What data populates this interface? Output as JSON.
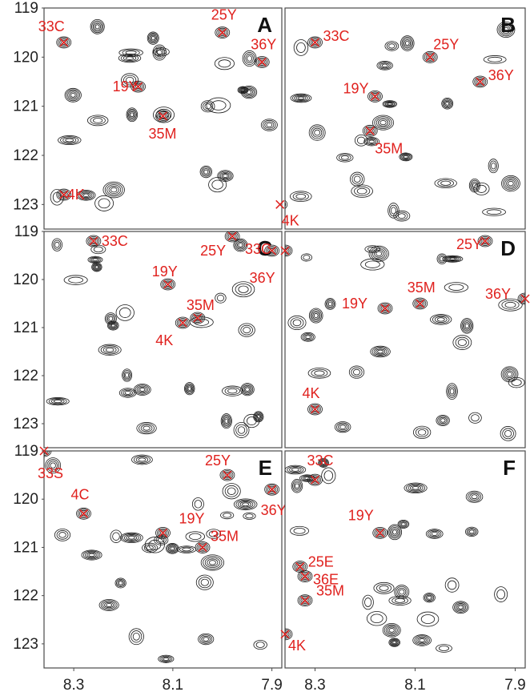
{
  "chart_data": {
    "type": "scatter",
    "description_free": true,
    "x_ticks": [
      "8.3",
      "8.1",
      "7.9"
    ],
    "y_ticks": [
      "119",
      "120",
      "121",
      "122",
      "123"
    ],
    "xlim": [
      8.36,
      7.88
    ],
    "ylim": [
      119.0,
      123.5
    ],
    "accent": "#e0211e",
    "panels": [
      {
        "label": "A",
        "assignments": [
          {
            "name": "33C",
            "x": 8.32,
            "y": 119.7
          },
          {
            "name": "25Y",
            "x": 8.0,
            "y": 119.5
          },
          {
            "name": "36Y",
            "x": 7.92,
            "y": 120.1
          },
          {
            "name": "19Y",
            "x": 8.17,
            "y": 120.6
          },
          {
            "name": "35M",
            "x": 8.12,
            "y": 121.2
          },
          {
            "name": "4K",
            "x": 8.32,
            "y": 122.8
          }
        ]
      },
      {
        "label": "B",
        "assignments": [
          {
            "name": "33C",
            "x": 8.3,
            "y": 119.7
          },
          {
            "name": "25Y",
            "x": 8.07,
            "y": 120.0
          },
          {
            "name": "36Y",
            "x": 7.97,
            "y": 120.5
          },
          {
            "name": "19Y",
            "x": 8.18,
            "y": 120.8
          },
          {
            "name": "35M",
            "x": 8.19,
            "y": 121.5
          },
          {
            "name": "4K",
            "x": 8.37,
            "y": 123.0
          }
        ]
      },
      {
        "label": "C",
        "assignments": [
          {
            "name": "33C",
            "x": 8.26,
            "y": 119.2
          },
          {
            "name": "25Y",
            "x": 7.98,
            "y": 119.1
          },
          {
            "name": "36Y",
            "x": 7.9,
            "y": 119.4
          },
          {
            "name": "19Y",
            "x": 8.11,
            "y": 120.1
          },
          {
            "name": "35M",
            "x": 8.05,
            "y": 120.8
          },
          {
            "name": "4K",
            "x": 8.08,
            "y": 120.9
          }
        ]
      },
      {
        "label": "D",
        "assignments": [
          {
            "name": "25Y",
            "x": 7.96,
            "y": 119.2
          },
          {
            "name": "33C",
            "x": 8.36,
            "y": 119.4
          },
          {
            "name": "36Y",
            "x": 7.88,
            "y": 120.4
          },
          {
            "name": "19Y",
            "x": 8.16,
            "y": 120.6
          },
          {
            "name": "35M",
            "x": 8.09,
            "y": 120.5
          },
          {
            "name": "4K",
            "x": 8.3,
            "y": 122.7
          }
        ]
      },
      {
        "label": "E",
        "assignments": [
          {
            "name": "25Y",
            "x": 7.99,
            "y": 119.5
          },
          {
            "name": "33S",
            "x": 8.36,
            "y": 119.0
          },
          {
            "name": "4C",
            "x": 8.28,
            "y": 120.3
          },
          {
            "name": "36Y",
            "x": 7.9,
            "y": 119.8
          },
          {
            "name": "19Y",
            "x": 8.12,
            "y": 120.7
          },
          {
            "name": "35M",
            "x": 8.04,
            "y": 121.0
          }
        ]
      },
      {
        "label": "F",
        "assignments": [
          {
            "name": "33C",
            "x": 8.3,
            "y": 119.6
          },
          {
            "name": "19Y",
            "x": 8.17,
            "y": 120.7
          },
          {
            "name": "25E",
            "x": 8.33,
            "y": 121.4
          },
          {
            "name": "36E",
            "x": 8.32,
            "y": 121.6
          },
          {
            "name": "35M",
            "x": 8.32,
            "y": 122.1
          },
          {
            "name": "4K",
            "x": 8.36,
            "y": 122.8
          }
        ]
      }
    ]
  }
}
